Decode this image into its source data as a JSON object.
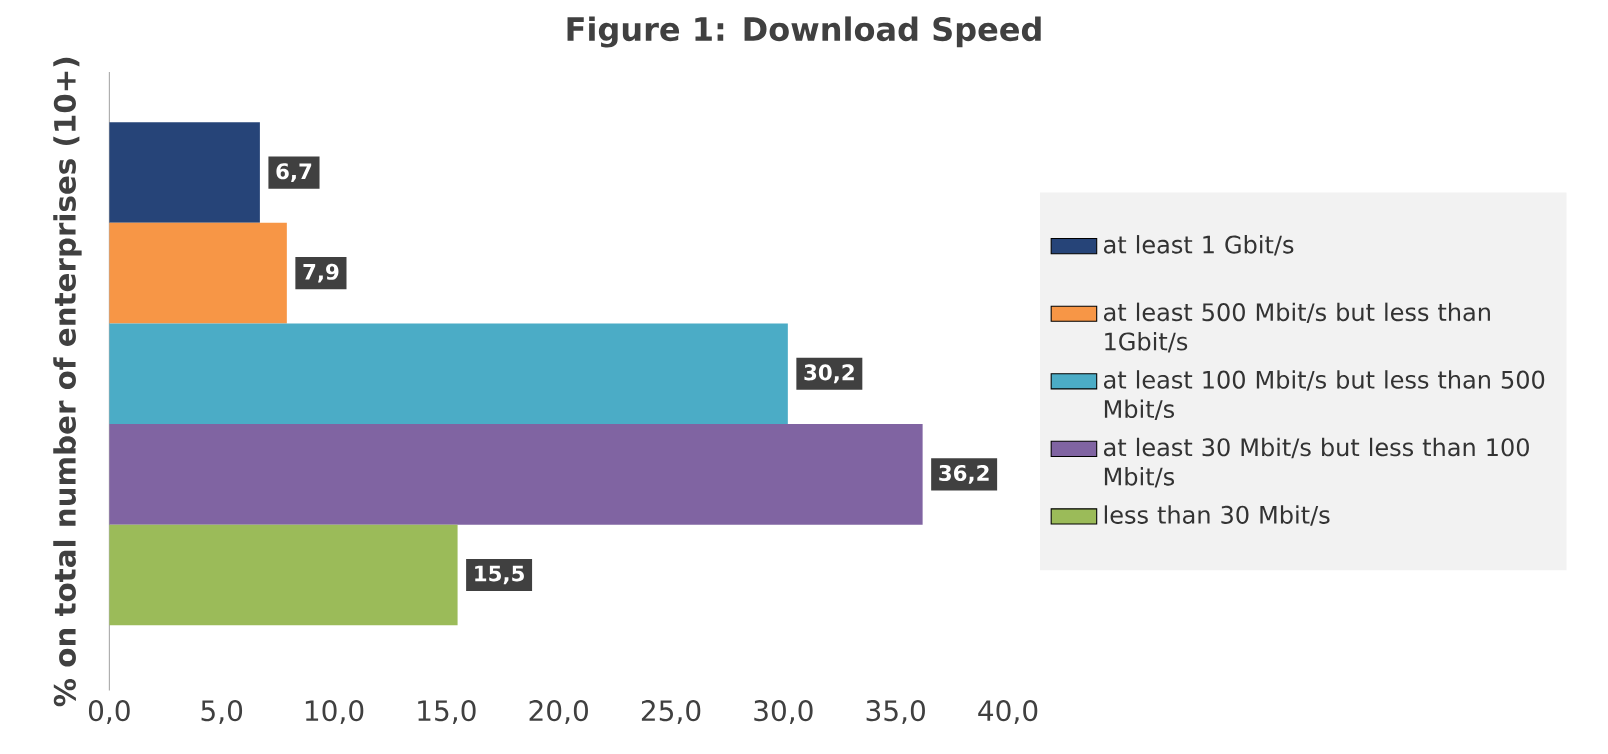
{
  "chart_data": {
    "type": "bar",
    "orientation": "horizontal",
    "title": "Figure 1: Download Speed",
    "ylabel": "% on total number of enterprises (10+)",
    "categories": [
      null
    ],
    "series": [
      {
        "name": "at least 1 Gbit/s",
        "color": "#264478",
        "values": [
          6.7
        ],
        "value_labels": [
          "6,7"
        ]
      },
      {
        "name": "at least 500 Mbit/s but less than 1Gbit/s",
        "color": "#f79646",
        "values": [
          7.9
        ],
        "value_labels": [
          "7,9"
        ]
      },
      {
        "name": "at least 100 Mbit/s but less than 500 Mbit/s",
        "color": "#4bacc6",
        "values": [
          30.2
        ],
        "value_labels": [
          "30,2"
        ]
      },
      {
        "name": "at least 30 Mbit/s but less than 100 Mbit/s",
        "color": "#8064a2",
        "values": [
          36.2
        ],
        "value_labels": [
          "36,2"
        ]
      },
      {
        "name": "less than 30 Mbit/s",
        "color": "#9bbb59",
        "values": [
          15.5
        ],
        "value_labels": [
          "15,5"
        ]
      }
    ],
    "xlim": [
      0,
      40
    ],
    "xticks": [
      {
        "value": 0,
        "label": "0,0"
      },
      {
        "value": 5,
        "label": "5,0"
      },
      {
        "value": 10,
        "label": "10,0"
      },
      {
        "value": 15,
        "label": "15,0"
      },
      {
        "value": 20,
        "label": "20,0"
      },
      {
        "value": 25,
        "label": "25,0"
      },
      {
        "value": 30,
        "label": "30,0"
      },
      {
        "value": 35,
        "label": "35,0"
      },
      {
        "value": 40,
        "label": "40,0"
      }
    ],
    "legend": "right",
    "tick_labels": "x"
  }
}
